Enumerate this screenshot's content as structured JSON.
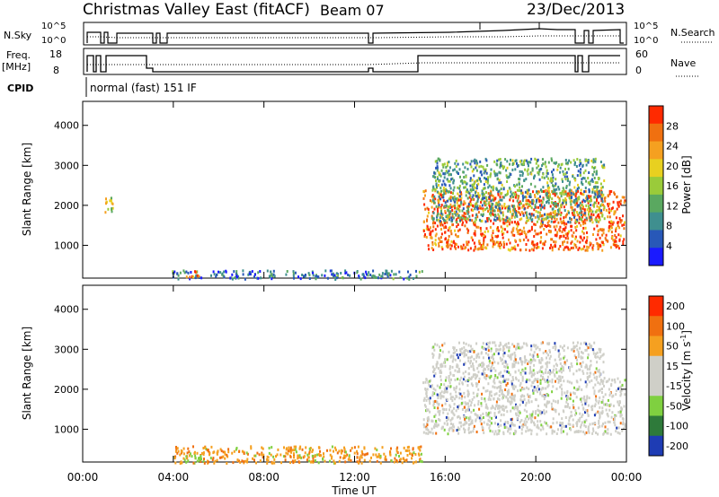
{
  "header": {
    "title": "Christmas Valley East (fitACF)",
    "beam": "Beam 07",
    "date": "23/Dec/2013"
  },
  "status_panel": {
    "nsky_label": "N.Sky",
    "nsky_ticks": [
      "10^5",
      "10^0"
    ],
    "nsearch_label": "N.Search",
    "nsearch_ticks": [
      "10^5",
      "10^0"
    ],
    "freq_label": [
      "Freq.",
      "[MHz]"
    ],
    "freq_ticks": [
      "18",
      "8"
    ],
    "nave_label": "Nave",
    "nave_ticks": [
      "60",
      "0"
    ],
    "cpid_label": "CPID",
    "cpid_value": "normal (fast) 151 IF"
  },
  "chart_data": [
    {
      "type": "heatmap",
      "quantity": "Power",
      "xlabel": "Time UT",
      "ylabel": "Slant Range [km]",
      "x_ticks": [
        "00:00",
        "04:00",
        "08:00",
        "12:00",
        "16:00",
        "20:00",
        "00:00"
      ],
      "xlim_hours": [
        0,
        24
      ],
      "y_ticks": [
        1000,
        2000,
        3000,
        4000
      ],
      "ylim_km": [
        180,
        4600
      ],
      "colorbar_label": "Power [dB]",
      "colorbar_ticks": [
        "4",
        "8",
        "12",
        "16",
        "20",
        "24",
        "28"
      ],
      "colorbar_colors": [
        "#1a1aff",
        "#2858b8",
        "#3f8f8f",
        "#5aa860",
        "#9acb3a",
        "#e8d020",
        "#f5a020",
        "#f07010",
        "#ff2a00"
      ],
      "regions": [
        {
          "t0": 0.9,
          "t1": 1.3,
          "r0": 1800,
          "r1": 2300,
          "level": 0.6
        },
        {
          "t0": 3.9,
          "t1": 13.0,
          "r0": 180,
          "r1": 400,
          "level": 0.2
        },
        {
          "t0": 4.4,
          "t1": 5.1,
          "r0": 220,
          "r1": 380,
          "level": 0.85
        },
        {
          "t0": 15.0,
          "t1": 23.9,
          "r0": 900,
          "r1": 2400,
          "level": 0.9
        },
        {
          "t0": 15.4,
          "t1": 23.0,
          "r0": 1600,
          "r1": 3200,
          "level": 0.35
        },
        {
          "t0": 13.0,
          "t1": 15.0,
          "r0": 180,
          "r1": 400,
          "level": 0.25
        }
      ]
    },
    {
      "type": "heatmap",
      "quantity": "Velocity",
      "xlabel": "Time UT",
      "ylabel": "Slant Range [km]",
      "x_ticks": [
        "00:00",
        "04:00",
        "08:00",
        "12:00",
        "16:00",
        "20:00",
        "00:00"
      ],
      "xlim_hours": [
        0,
        24
      ],
      "y_ticks": [
        1000,
        2000,
        3000,
        4000
      ],
      "ylim_km": [
        180,
        4600
      ],
      "colorbar_label": "Velocity [m s",
      "colorbar_unit_sup": "-1",
      "colorbar_ticks": [
        "200",
        "100",
        "50",
        "15",
        "-15",
        "-50",
        "-100",
        "-200"
      ],
      "colorbar_colors": [
        "#1e3cb4",
        "#2e7a3a",
        "#7fd040",
        "#cfcfc8",
        "#cfcfc8",
        "#f5a020",
        "#f07010",
        "#ff2a00"
      ],
      "regions": [
        {
          "t0": 15.0,
          "t1": 23.9,
          "r0": 900,
          "r1": 2300,
          "level": "ground"
        },
        {
          "t0": 15.4,
          "t1": 23.0,
          "r0": 2300,
          "r1": 3200,
          "level": "ground"
        },
        {
          "t0": 4.0,
          "t1": 15.0,
          "r0": 180,
          "r1": 600,
          "level": "negative"
        },
        {
          "t0": 4.3,
          "t1": 5.2,
          "r0": 220,
          "r1": 380,
          "level": "positive"
        }
      ]
    }
  ]
}
